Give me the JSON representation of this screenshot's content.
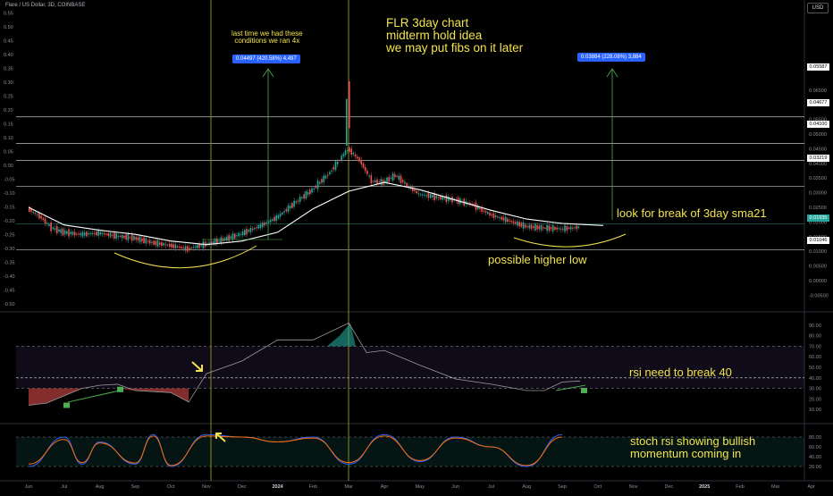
{
  "header": {
    "symbol_line": "Flare / US Dollar, 3D, COINBASE",
    "currency_button": "USD"
  },
  "annotations": {
    "title_note": "FLR 3day chart\nmidterm hold idea\nwe may put fibs on it later",
    "history_note": "last time we had these\nconditions we ran 4x",
    "sma_note": "look for break of 3day sma21",
    "higher_low_note": "possible higher low",
    "rsi_note": "rsi need to break 40",
    "stoch_note": "stoch rsi showing bullish\nmomentum coming in"
  },
  "measure_tags": {
    "left": "0.04497 (420.58%) 4,497",
    "right": "0.03884 (228.08%) 3,884"
  },
  "price_levels": [
    "0.05587",
    "0.04677",
    "0.04100",
    "0.03219",
    "0.01935",
    "0.01046"
  ],
  "colors": {
    "up": "#26a69a",
    "down": "#ef5350",
    "annotation": "#f2e34c",
    "sma": "#ffffff",
    "measure": "#2962ff",
    "rsi_line": "#9b9b9b",
    "stoch_k": "#2962ff",
    "stoch_d": "#ff6d00",
    "event_line": "#8a8a1a"
  },
  "chart_data": [
    {
      "type": "candlestick",
      "title": "Flare / US Dollar, 3D, COINBASE",
      "x_labels": [
        "Jun",
        "Jul",
        "Aug",
        "Sep",
        "Oct",
        "Nov",
        "Dec",
        "2024",
        "Feb",
        "Mar",
        "Apr",
        "May",
        "Jun",
        "Jul",
        "Aug",
        "Sep",
        "Oct",
        "Nov",
        "Dec",
        "2025",
        "Feb",
        "Mar",
        "Apr"
      ],
      "left_axis_ticks": [
        0.55,
        0.5,
        0.45,
        0.4,
        0.35,
        0.3,
        0.25,
        0.2,
        0.15,
        0.1,
        0.05,
        0.0,
        -0.05,
        -0.1,
        -0.15,
        -0.2,
        -0.25,
        -0.3,
        -0.35,
        -0.4,
        -0.45,
        -0.5
      ],
      "right_axis_ticks": [
        "0.06500",
        "0.06000",
        "0.05500",
        "0.05000",
        "0.04500",
        "0.04000",
        "0.03500",
        "0.03000",
        "0.02500",
        "0.02000",
        "0.01500",
        "0.01000",
        "0.00500",
        "0.00000",
        "-0.00500"
      ],
      "horizontal_levels": [
        0.05587,
        0.04677,
        0.041,
        0.03219,
        0.01935,
        0.01046
      ],
      "close_path": [
        [
          "Jun",
          0.0245
        ],
        [
          "Jun",
          0.022
        ],
        [
          "Jun",
          0.018
        ],
        [
          "Jul",
          0.0165
        ],
        [
          "Jul",
          0.0158
        ],
        [
          "Aug",
          0.0162
        ],
        [
          "Aug",
          0.0152
        ],
        [
          "Sep",
          0.0145
        ],
        [
          "Sep",
          0.013
        ],
        [
          "Oct",
          0.012
        ],
        [
          "Oct",
          0.0108
        ],
        [
          "Nov",
          0.0125
        ],
        [
          "Nov",
          0.014
        ],
        [
          "Dec",
          0.016
        ],
        [
          "Dec",
          0.0185
        ],
        [
          "2024",
          0.0215
        ],
        [
          "2024",
          0.0265
        ],
        [
          "Feb",
          0.031
        ],
        [
          "Feb",
          0.037
        ],
        [
          "Mar",
          0.045
        ],
        [
          "Mar",
          0.041
        ],
        [
          "Mar",
          0.034
        ],
        [
          "Apr",
          0.0335
        ],
        [
          "Apr",
          0.036
        ],
        [
          "Apr",
          0.0325
        ],
        [
          "May",
          0.0295
        ],
        [
          "May",
          0.0285
        ],
        [
          "Jun",
          0.0275
        ],
        [
          "Jun",
          0.026
        ],
        [
          "Jul",
          0.0225
        ],
        [
          "Jul",
          0.0205
        ],
        [
          "Aug",
          0.0185
        ],
        [
          "Aug",
          0.018
        ],
        [
          "Sep",
          0.0177
        ],
        [
          "Sep",
          0.0182
        ]
      ],
      "sma21_path": [
        [
          "Jun",
          0.025
        ],
        [
          "Jul",
          0.019
        ],
        [
          "Aug",
          0.0172
        ],
        [
          "Sep",
          0.0158
        ],
        [
          "Oct",
          0.0135
        ],
        [
          "Nov",
          0.0123
        ],
        [
          "Dec",
          0.0135
        ],
        [
          "2024",
          0.0165
        ],
        [
          "Feb",
          0.0245
        ],
        [
          "Mar",
          0.0305
        ],
        [
          "Apr",
          0.0335
        ],
        [
          "May",
          0.031
        ],
        [
          "Jun",
          0.0275
        ],
        [
          "Jul",
          0.024
        ],
        [
          "Aug",
          0.021
        ],
        [
          "Sep",
          0.0195
        ]
      ]
    },
    {
      "type": "line",
      "title": "RSI",
      "y_ticks": [
        90,
        80,
        70,
        60,
        50,
        40,
        30,
        20,
        10
      ],
      "bands": [
        30,
        70
      ],
      "reference_line": 40,
      "x": [
        "Jun",
        "Jun",
        "Jul",
        "Jul",
        "Aug",
        "Aug",
        "Sep",
        "Oct",
        "Oct",
        "Nov",
        "Dec",
        "2024",
        "Feb",
        "Mar",
        "Mar",
        "Apr",
        "May",
        "Jun",
        "Jul",
        "Aug",
        "Aug",
        "Sep",
        "Sep"
      ],
      "values": [
        14,
        16,
        23,
        30,
        33,
        34,
        28,
        26,
        17,
        44,
        56,
        76,
        76,
        92,
        64,
        66,
        52,
        39,
        34,
        28,
        28,
        36,
        37
      ]
    },
    {
      "type": "line",
      "title": "Stoch RSI",
      "y_ticks": [
        80,
        60,
        40,
        20
      ],
      "bands": [
        20,
        80
      ],
      "series": [
        {
          "x": [
            "Jun",
            "Jul",
            "Jul",
            "Aug",
            "Sep",
            "Sep",
            "Oct",
            "Nov",
            "Dec",
            "2024",
            "Feb",
            "Mar",
            "Apr",
            "May",
            "Jun",
            "Jul",
            "Aug",
            "Sep"
          ],
          "values": [
            20,
            80,
            25,
            70,
            25,
            85,
            20,
            85,
            80,
            70,
            80,
            25,
            85,
            30,
            80,
            60,
            20,
            85
          ]
        },
        {
          "x": [
            "Jun",
            "Jul",
            "Jul",
            "Aug",
            "Sep",
            "Sep",
            "Oct",
            "Nov",
            "Dec",
            "2024",
            "Feb",
            "Mar",
            "Apr",
            "May",
            "Jun",
            "Jul",
            "Aug",
            "Sep"
          ],
          "values": [
            25,
            75,
            28,
            68,
            27,
            82,
            22,
            82,
            80,
            70,
            78,
            28,
            82,
            32,
            78,
            60,
            22,
            80
          ]
        }
      ]
    }
  ]
}
